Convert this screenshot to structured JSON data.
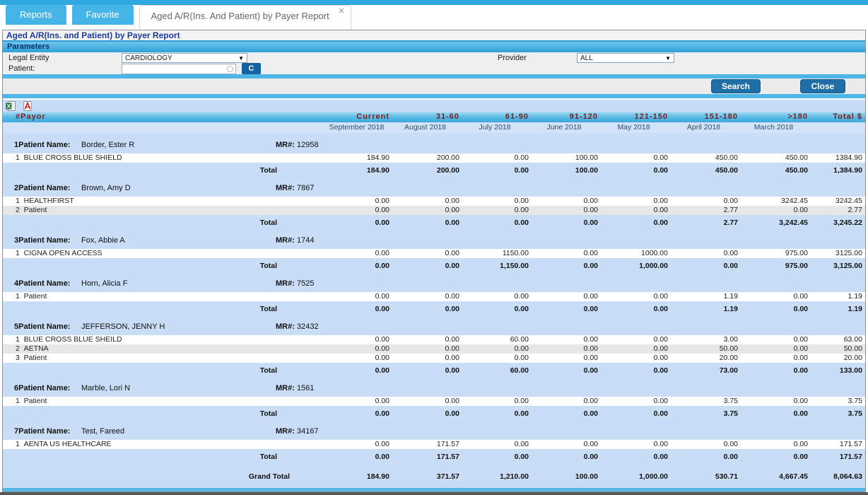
{
  "tabs": [
    {
      "label": "Reports"
    },
    {
      "label": "Favorite"
    }
  ],
  "active_tab": {
    "label": "Aged A/R(Ins. And Patient) by Payer Report"
  },
  "icons": {
    "close": "✕",
    "dropdown_arrow": "▼"
  },
  "title": "Aged A/R(Ins. and Patient) by Payer Report",
  "parameters": {
    "header": "Parameters",
    "legal_entity_label": "Legal Entity",
    "legal_entity_value": "CARDIOLOGY",
    "patient_label": "Patient:",
    "patient_value": "",
    "c_button": "C",
    "provider_label": "Provider",
    "provider_value": "ALL",
    "search_button": "Search",
    "close_button": "Close"
  },
  "colors": {
    "tab_blue": "#45b5e7",
    "button_blue": "#1f6fa6",
    "header_text_maroon": "#7b1d1d",
    "report_background": "#c9ddf6",
    "header_gradient_blue": "#3ea9dd"
  },
  "report": {
    "columns": [
      "#Payor",
      "Current",
      "31-60",
      "61-90",
      "91-120",
      "121-150",
      "151-180",
      ">180",
      "Total $"
    ],
    "dates": [
      "September 2018",
      "August 2018",
      "July 2018",
      "June 2018",
      "May 2018",
      "April 2018",
      "March 2018"
    ],
    "patient_name_label": "Patient Name:",
    "mr_label": "MR#:",
    "total_label": "Total",
    "grand_total_label": "Grand Total",
    "patients": [
      {
        "index": "1",
        "name": "Border, Ester R",
        "mr": "12958",
        "payers": [
          {
            "num": "1",
            "name": "BLUE CROSS BLUE SHIELD",
            "values": [
              "184.90",
              "200.00",
              "0.00",
              "100.00",
              "0.00",
              "450.00",
              "450.00",
              "1384.90"
            ]
          }
        ],
        "total": [
          "184.90",
          "200.00",
          "0.00",
          "100.00",
          "0.00",
          "450.00",
          "450.00",
          "1,384.90"
        ]
      },
      {
        "index": "2",
        "name": "Brown, Amy D",
        "mr": "7867",
        "payers": [
          {
            "num": "1",
            "name": "HEALTHFIRST",
            "values": [
              "0.00",
              "0.00",
              "0.00",
              "0.00",
              "0.00",
              "0.00",
              "3242.45",
              "3242.45"
            ]
          },
          {
            "num": "2",
            "name": "Patient",
            "values": [
              "0.00",
              "0.00",
              "0.00",
              "0.00",
              "0.00",
              "2.77",
              "0.00",
              "2.77"
            ]
          }
        ],
        "total": [
          "0.00",
          "0.00",
          "0.00",
          "0.00",
          "0.00",
          "2.77",
          "3,242.45",
          "3,245.22"
        ]
      },
      {
        "index": "3",
        "name": "Fox, Abbie A",
        "mr": "1744",
        "payers": [
          {
            "num": "1",
            "name": "CIGNA OPEN ACCESS",
            "values": [
              "0.00",
              "0.00",
              "1150.00",
              "0.00",
              "1000.00",
              "0.00",
              "975.00",
              "3125.00"
            ]
          }
        ],
        "total": [
          "0.00",
          "0.00",
          "1,150.00",
          "0.00",
          "1,000.00",
          "0.00",
          "975.00",
          "3,125.00"
        ]
      },
      {
        "index": "4",
        "name": "Horn, Alicia F",
        "mr": "7525",
        "payers": [
          {
            "num": "1",
            "name": "Patient",
            "values": [
              "0.00",
              "0.00",
              "0.00",
              "0.00",
              "0.00",
              "1.19",
              "0.00",
              "1.19"
            ]
          }
        ],
        "total": [
          "0.00",
          "0.00",
          "0.00",
          "0.00",
          "0.00",
          "1.19",
          "0.00",
          "1.19"
        ]
      },
      {
        "index": "5",
        "name": "JEFFERSON, JENNY H",
        "mr": "32432",
        "payers": [
          {
            "num": "1",
            "name": "BLUE CROSS BLUE SHEILD",
            "values": [
              "0.00",
              "0.00",
              "60.00",
              "0.00",
              "0.00",
              "3.00",
              "0.00",
              "63.00"
            ]
          },
          {
            "num": "2",
            "name": "AETNA",
            "values": [
              "0.00",
              "0.00",
              "0.00",
              "0.00",
              "0.00",
              "50.00",
              "0.00",
              "50.00"
            ]
          },
          {
            "num": "3",
            "name": "Patient",
            "values": [
              "0.00",
              "0.00",
              "0.00",
              "0.00",
              "0.00",
              "20.00",
              "0.00",
              "20.00"
            ]
          }
        ],
        "total": [
          "0.00",
          "0.00",
          "60.00",
          "0.00",
          "0.00",
          "73.00",
          "0.00",
          "133.00"
        ]
      },
      {
        "index": "6",
        "name": "Marble, Lori N",
        "mr": "1561",
        "payers": [
          {
            "num": "1",
            "name": "Patient",
            "values": [
              "0.00",
              "0.00",
              "0.00",
              "0.00",
              "0.00",
              "3.75",
              "0.00",
              "3.75"
            ]
          }
        ],
        "total": [
          "0.00",
          "0.00",
          "0.00",
          "0.00",
          "0.00",
          "3.75",
          "0.00",
          "3.75"
        ]
      },
      {
        "index": "7",
        "name": "Test, Fareed",
        "mr": "34167",
        "payers": [
          {
            "num": "1",
            "name": "AENTA US HEALTHCARE",
            "values": [
              "0.00",
              "171.57",
              "0.00",
              "0.00",
              "0.00",
              "0.00",
              "0.00",
              "171.57"
            ]
          }
        ],
        "total": [
          "0.00",
          "171.57",
          "0.00",
          "0.00",
          "0.00",
          "0.00",
          "0.00",
          "171.57"
        ]
      }
    ],
    "grand_total": [
      "184.90",
      "371.57",
      "1,210.00",
      "100.00",
      "1,000.00",
      "530.71",
      "4,667.45",
      "8,064.63"
    ]
  }
}
